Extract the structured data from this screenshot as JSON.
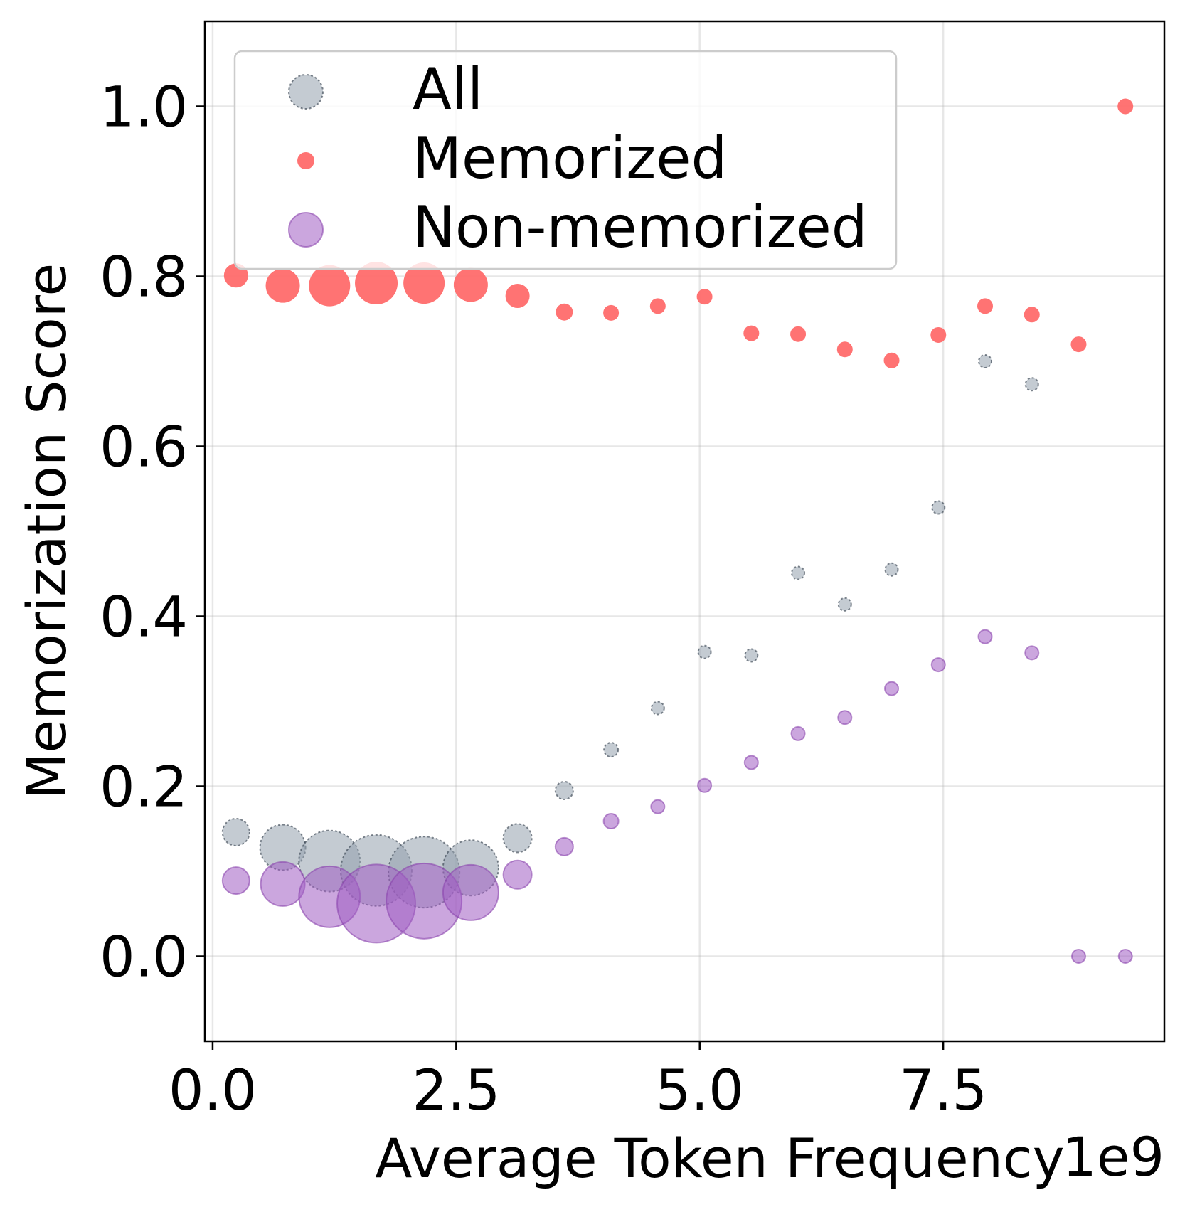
{
  "chart_data": {
    "type": "scatter",
    "title": "",
    "xlabel": "Average Token Frequency",
    "ylabel": "Memorization Score",
    "x_offset_label": "1e9",
    "xlim": [
      -0.08,
      9.77
    ],
    "ylim": [
      -0.1,
      1.1
    ],
    "xticks": [
      0.0,
      2.5,
      5.0,
      7.5
    ],
    "xtick_labels": [
      "0.0",
      "2.5",
      "5.0",
      "7.5"
    ],
    "yticks": [
      0.0,
      0.2,
      0.4,
      0.6,
      0.8,
      1.0
    ],
    "ytick_labels": [
      "0.0",
      "0.2",
      "0.4",
      "0.6",
      "0.8",
      "1.0"
    ],
    "grid": true,
    "legend_position": "top-left",
    "series": [
      {
        "name": "All",
        "color": "#94a0ad",
        "edge_color": "#2f3b47",
        "points": [
          {
            "x": 0.24,
            "y": 0.146,
            "size": 19
          },
          {
            "x": 0.72,
            "y": 0.128,
            "size": 32
          },
          {
            "x": 1.2,
            "y": 0.112,
            "size": 43
          },
          {
            "x": 1.68,
            "y": 0.101,
            "size": 50
          },
          {
            "x": 2.17,
            "y": 0.099,
            "size": 50
          },
          {
            "x": 2.65,
            "y": 0.104,
            "size": 39
          },
          {
            "x": 3.13,
            "y": 0.139,
            "size": 20
          },
          {
            "x": 3.61,
            "y": 0.195,
            "size": 12.5
          },
          {
            "x": 4.09,
            "y": 0.243,
            "size": 10
          },
          {
            "x": 4.57,
            "y": 0.292,
            "size": 9
          },
          {
            "x": 5.05,
            "y": 0.358,
            "size": 9
          },
          {
            "x": 5.53,
            "y": 0.354,
            "size": 9
          },
          {
            "x": 6.01,
            "y": 0.451,
            "size": 9
          },
          {
            "x": 6.49,
            "y": 0.414,
            "size": 9
          },
          {
            "x": 6.97,
            "y": 0.455,
            "size": 9
          },
          {
            "x": 7.45,
            "y": 0.528,
            "size": 9
          },
          {
            "x": 7.93,
            "y": 0.7,
            "size": 9
          },
          {
            "x": 8.41,
            "y": 0.673,
            "size": 9
          }
        ]
      },
      {
        "name": "Memorized",
        "color": "#ff6b6b",
        "edge_color": "#ff6b6b",
        "points": [
          {
            "x": 0.24,
            "y": 0.801,
            "size": 17
          },
          {
            "x": 0.72,
            "y": 0.789,
            "size": 24
          },
          {
            "x": 1.2,
            "y": 0.789,
            "size": 29
          },
          {
            "x": 1.68,
            "y": 0.792,
            "size": 30
          },
          {
            "x": 2.17,
            "y": 0.792,
            "size": 29
          },
          {
            "x": 2.65,
            "y": 0.79,
            "size": 24
          },
          {
            "x": 3.13,
            "y": 0.777,
            "size": 17
          },
          {
            "x": 3.61,
            "y": 0.758,
            "size": 12
          },
          {
            "x": 4.09,
            "y": 0.757,
            "size": 11
          },
          {
            "x": 4.57,
            "y": 0.765,
            "size": 11
          },
          {
            "x": 5.05,
            "y": 0.776,
            "size": 11
          },
          {
            "x": 5.53,
            "y": 0.733,
            "size": 11
          },
          {
            "x": 6.01,
            "y": 0.732,
            "size": 11
          },
          {
            "x": 6.49,
            "y": 0.714,
            "size": 11
          },
          {
            "x": 6.97,
            "y": 0.701,
            "size": 11
          },
          {
            "x": 7.45,
            "y": 0.731,
            "size": 11
          },
          {
            "x": 7.93,
            "y": 0.765,
            "size": 11
          },
          {
            "x": 8.41,
            "y": 0.755,
            "size": 11
          },
          {
            "x": 8.89,
            "y": 0.72,
            "size": 11
          },
          {
            "x": 9.37,
            "y": 1.0,
            "size": 11
          }
        ]
      },
      {
        "name": "Non-memorized",
        "color": "#a05cc2",
        "edge_color": "#8a44ad",
        "points": [
          {
            "x": 0.24,
            "y": 0.089,
            "size": 19
          },
          {
            "x": 0.72,
            "y": 0.085,
            "size": 31
          },
          {
            "x": 1.2,
            "y": 0.07,
            "size": 43
          },
          {
            "x": 1.68,
            "y": 0.062,
            "size": 55
          },
          {
            "x": 2.17,
            "y": 0.065,
            "size": 53
          },
          {
            "x": 2.65,
            "y": 0.075,
            "size": 39
          },
          {
            "x": 3.13,
            "y": 0.096,
            "size": 20
          },
          {
            "x": 3.61,
            "y": 0.129,
            "size": 12.5
          },
          {
            "x": 4.09,
            "y": 0.159,
            "size": 10.5
          },
          {
            "x": 4.57,
            "y": 0.176,
            "size": 9.5
          },
          {
            "x": 5.05,
            "y": 0.201,
            "size": 9.5
          },
          {
            "x": 5.53,
            "y": 0.228,
            "size": 9.5
          },
          {
            "x": 6.01,
            "y": 0.262,
            "size": 9.5
          },
          {
            "x": 6.49,
            "y": 0.281,
            "size": 9.5
          },
          {
            "x": 6.97,
            "y": 0.315,
            "size": 9.5
          },
          {
            "x": 7.45,
            "y": 0.343,
            "size": 9.5
          },
          {
            "x": 7.93,
            "y": 0.376,
            "size": 9.5
          },
          {
            "x": 8.41,
            "y": 0.357,
            "size": 9.5
          },
          {
            "x": 8.89,
            "y": 0.0,
            "size": 9.5
          },
          {
            "x": 9.37,
            "y": 0.0,
            "size": 9.5
          }
        ]
      }
    ]
  }
}
